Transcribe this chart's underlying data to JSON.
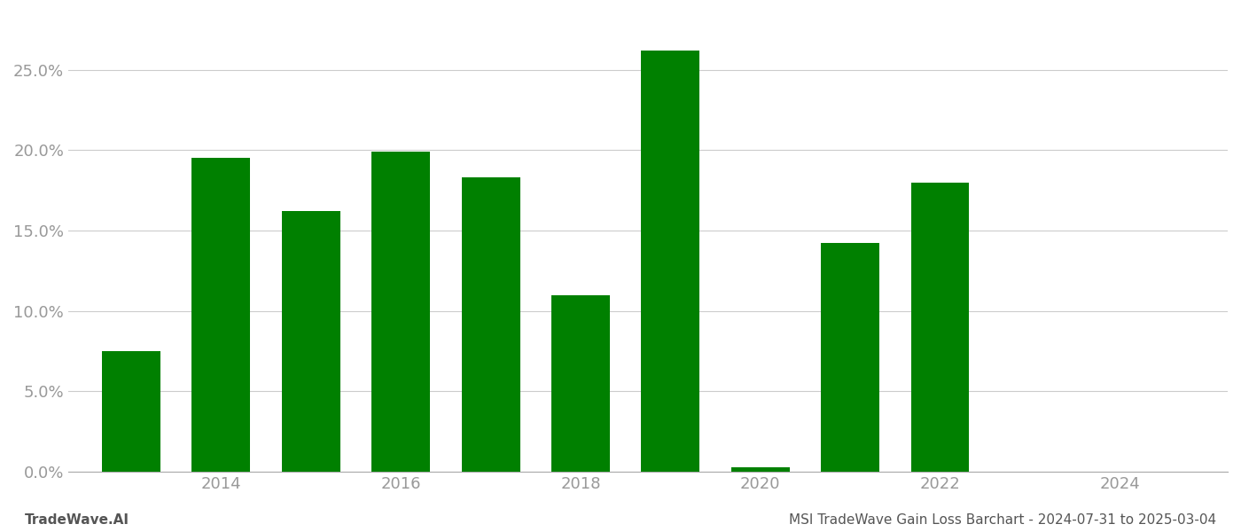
{
  "years": [
    2013,
    2014,
    2015,
    2016,
    2017,
    2018,
    2019,
    2020,
    2021,
    2022,
    2023,
    2024
  ],
  "values": [
    0.075,
    0.195,
    0.162,
    0.199,
    0.183,
    0.11,
    0.262,
    0.003,
    0.142,
    0.18,
    0.0,
    0.0
  ],
  "bar_color": "#008000",
  "background_color": "#ffffff",
  "grid_color": "#cccccc",
  "axis_color": "#aaaaaa",
  "tick_label_color": "#999999",
  "ylabel_ticks": [
    0.0,
    0.05,
    0.1,
    0.15,
    0.2,
    0.25
  ],
  "xtick_positions": [
    2014,
    2016,
    2018,
    2020,
    2022,
    2024
  ],
  "ylim": [
    0,
    0.285
  ],
  "xlim_left": 2012.3,
  "xlim_right": 2025.2,
  "bar_width": 0.65,
  "footer_left": "TradeWave.AI",
  "footer_right": "MSI TradeWave Gain Loss Barchart - 2024-07-31 to 2025-03-04",
  "footer_color": "#555555",
  "footer_fontsize": 11
}
